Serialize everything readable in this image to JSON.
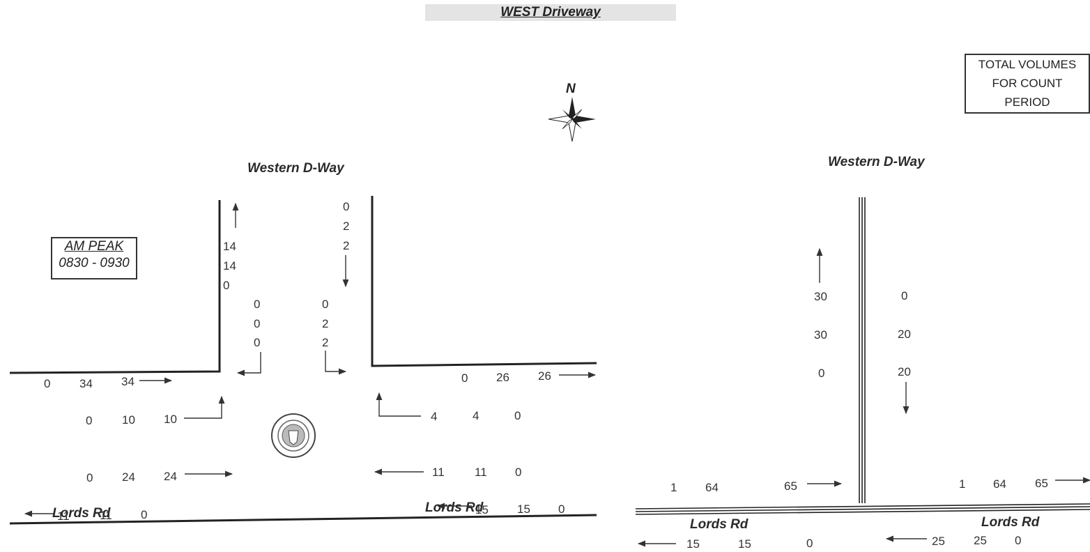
{
  "title": "WEST Driveway",
  "north_label": "N",
  "am_peak": {
    "label": "AM PEAK",
    "time": "0830 - 0930"
  },
  "total_box": {
    "line1": "TOTAL VOLUMES",
    "line2": "FOR COUNT",
    "line3": "PERIOD"
  },
  "left_diagram": {
    "north_road": "Western D-Way",
    "south_road_left": "Lords Rd",
    "south_road_right": "Lords Rd",
    "north_out": [
      "14",
      "14",
      "0"
    ],
    "north_in": [
      "0",
      "2",
      "2"
    ],
    "sb_left_turn": [
      "0",
      "0",
      "0"
    ],
    "sb_right_turn": [
      "0",
      "2",
      "2"
    ],
    "west_top": [
      "0",
      "34",
      "34"
    ],
    "east_top": [
      "0",
      "26",
      "26"
    ],
    "west_nb_right": [
      "0",
      "10",
      "10"
    ],
    "west_eb_thru": [
      "0",
      "24",
      "24"
    ],
    "east_nb_left": [
      "4",
      "4",
      "0"
    ],
    "east_wb_thru": [
      "11",
      "11",
      "0"
    ],
    "bottom_left": [
      "11",
      "11",
      "0"
    ],
    "bottom_right": [
      "15",
      "15",
      "0"
    ]
  },
  "right_diagram": {
    "north_road": "Western D-Way",
    "south_road_left": "Lords Rd",
    "south_road_right": "Lords Rd",
    "north_out": [
      "30",
      "30",
      "0"
    ],
    "north_in": [
      "0",
      "20",
      "20"
    ],
    "west_eb": [
      "1",
      "64",
      "65"
    ],
    "east_eb": [
      "1",
      "64",
      "65"
    ],
    "west_wb": [
      "15",
      "15",
      "0"
    ],
    "east_wb": [
      "25",
      "25",
      "0"
    ]
  },
  "colors": {
    "line": "#222222",
    "text": "#333333",
    "title_bg": "#e4e4e4"
  }
}
